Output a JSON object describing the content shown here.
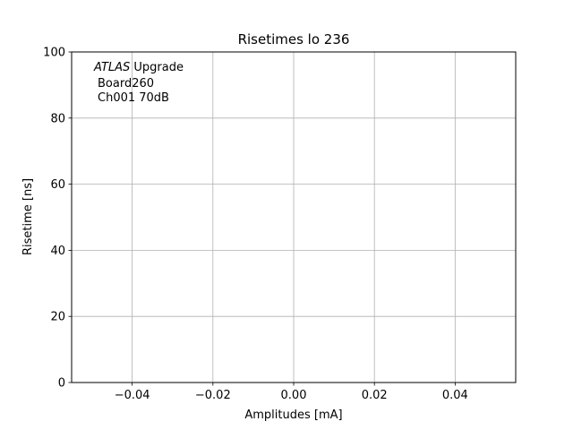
{
  "chart_data": {
    "type": "scatter",
    "title": "Risetimes lo 236",
    "xlabel": "Amplitudes [mA]",
    "ylabel": "Risetime [ns]",
    "xlim": [
      -0.055,
      0.055
    ],
    "ylim": [
      0,
      100
    ],
    "xticks": [
      -0.04,
      -0.02,
      0.0,
      0.02,
      0.04
    ],
    "xtick_labels": [
      "−0.04",
      "−0.02",
      "0.00",
      "0.02",
      "0.04"
    ],
    "yticks": [
      0,
      20,
      40,
      60,
      80,
      100
    ],
    "ytick_labels": [
      "0",
      "20",
      "40",
      "60",
      "80",
      "100"
    ],
    "grid": true,
    "grid_color": "#b0b0b0",
    "series": [],
    "annotation": {
      "line1_italic": "ATLAS",
      "line1_rest": " Upgrade",
      "line2": "Board260",
      "line3": "Ch001 70dB"
    }
  }
}
